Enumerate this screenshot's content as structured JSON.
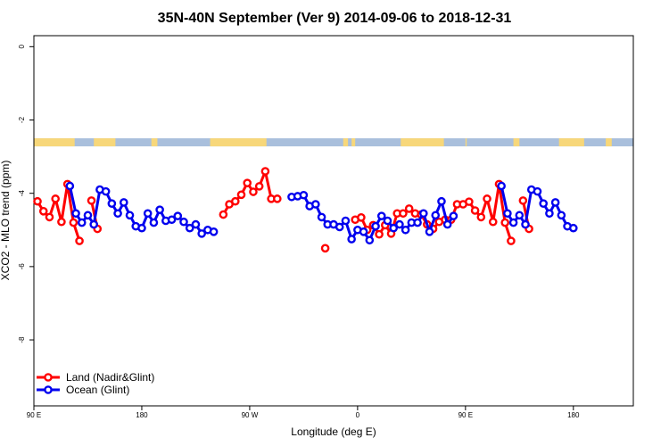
{
  "chart_data": {
    "type": "line",
    "title": "35N-40N September (Ver 9)   2014-09-06 to 2018-12-31",
    "xlabel": "Longitude (deg E)",
    "ylabel": "XCO2 - MLO trend (ppm)",
    "xlim": [
      90,
      590
    ],
    "ylim": [
      -9.8,
      0.3
    ],
    "x_ticks": [
      {
        "value": 90,
        "label": "90 E"
      },
      {
        "value": 180,
        "label": "180"
      },
      {
        "value": 270,
        "label": "90 W"
      },
      {
        "value": 360,
        "label": "0"
      },
      {
        "value": 450,
        "label": "90 E"
      },
      {
        "value": 540,
        "label": "180"
      }
    ],
    "y_ticks": [
      {
        "value": 0,
        "label": "0"
      },
      {
        "value": -2,
        "label": "-2"
      },
      {
        "value": -4,
        "label": "-4"
      },
      {
        "value": -6,
        "label": "-6"
      },
      {
        "value": -8,
        "label": "-8"
      }
    ],
    "grid": false,
    "legend_position": "bottom-left",
    "land_ocean_strip": {
      "y_range": [
        -2.5,
        -2.72
      ],
      "land_color": "#f7d77a",
      "ocean_color": "#a9bfdc",
      "land_segments": [
        [
          90,
          124
        ],
        [
          140,
          158
        ],
        [
          188,
          193
        ],
        [
          237,
          284
        ],
        [
          348,
          352
        ],
        [
          355,
          358
        ],
        [
          396,
          432
        ],
        [
          450,
          451
        ],
        [
          490,
          495
        ],
        [
          528,
          549
        ],
        [
          567,
          572
        ]
      ]
    },
    "series": [
      {
        "name": "Land (Nadir&Glint)",
        "color": "#ff0000",
        "segments": [
          [
            [
              93,
              -4.22
            ],
            [
              98,
              -4.49
            ],
            [
              103,
              -4.65
            ],
            [
              108,
              -4.15
            ],
            [
              113,
              -4.78
            ],
            [
              118,
              -3.75
            ],
            [
              123,
              -4.8
            ],
            [
              128,
              -5.3
            ]
          ],
          [
            [
              138,
              -4.2
            ],
            [
              143,
              -4.97
            ]
          ],
          [
            [
              248,
              -4.58
            ],
            [
              253,
              -4.3
            ],
            [
              258,
              -4.22
            ],
            [
              263,
              -4.04
            ],
            [
              268,
              -3.72
            ],
            [
              273,
              -3.96
            ],
            [
              278,
              -3.81
            ],
            [
              283,
              -3.4
            ],
            [
              288,
              -4.15
            ],
            [
              293,
              -4.15
            ]
          ],
          [
            [
              333,
              -5.5
            ]
          ],
          [
            [
              358,
              -4.72
            ],
            [
              363,
              -4.66
            ],
            [
              368,
              -5.0
            ],
            [
              373,
              -4.87
            ],
            [
              378,
              -5.12
            ],
            [
              383,
              -4.87
            ],
            [
              388,
              -5.1
            ],
            [
              393,
              -4.55
            ],
            [
              398,
              -4.55
            ],
            [
              403,
              -4.42
            ],
            [
              408,
              -4.55
            ],
            [
              413,
              -4.58
            ],
            [
              418,
              -4.85
            ],
            [
              423,
              -4.97
            ],
            [
              428,
              -4.78
            ],
            [
              433,
              -4.72
            ],
            [
              438,
              -4.72
            ],
            [
              443,
              -4.3
            ],
            [
              448,
              -4.3
            ],
            [
              453,
              -4.23
            ],
            [
              458,
              -4.47
            ],
            [
              463,
              -4.65
            ],
            [
              468,
              -4.15
            ],
            [
              473,
              -4.78
            ],
            [
              478,
              -3.75
            ],
            [
              483,
              -4.8
            ],
            [
              488,
              -5.3
            ]
          ],
          [
            [
              498,
              -4.2
            ],
            [
              503,
              -4.97
            ]
          ]
        ]
      },
      {
        "name": "Ocean (Glint)",
        "color": "#0000ee",
        "segments": [
          [
            [
              120,
              -3.8
            ],
            [
              125,
              -4.55
            ],
            [
              130,
              -4.8
            ],
            [
              135,
              -4.6
            ],
            [
              140,
              -4.85
            ],
            [
              145,
              -3.9
            ],
            [
              150,
              -3.95
            ],
            [
              155,
              -4.28
            ],
            [
              160,
              -4.55
            ],
            [
              165,
              -4.25
            ],
            [
              170,
              -4.6
            ],
            [
              175,
              -4.9
            ],
            [
              180,
              -4.95
            ],
            [
              185,
              -4.55
            ],
            [
              190,
              -4.8
            ],
            [
              195,
              -4.45
            ],
            [
              200,
              -4.75
            ],
            [
              205,
              -4.72
            ],
            [
              210,
              -4.62
            ],
            [
              215,
              -4.78
            ],
            [
              220,
              -4.95
            ],
            [
              225,
              -4.85
            ],
            [
              230,
              -5.1
            ],
            [
              235,
              -5.0
            ],
            [
              240,
              -5.05
            ]
          ],
          [
            [
              305,
              -4.1
            ],
            [
              310,
              -4.08
            ],
            [
              315,
              -4.05
            ],
            [
              320,
              -4.35
            ],
            [
              325,
              -4.3
            ],
            [
              330,
              -4.65
            ],
            [
              335,
              -4.85
            ],
            [
              340,
              -4.85
            ],
            [
              345,
              -4.92
            ],
            [
              350,
              -4.75
            ],
            [
              355,
              -5.25
            ],
            [
              360,
              -5.0
            ],
            [
              365,
              -5.05
            ],
            [
              370,
              -5.28
            ],
            [
              375,
              -4.9
            ],
            [
              380,
              -4.62
            ],
            [
              385,
              -4.75
            ],
            [
              390,
              -4.95
            ],
            [
              395,
              -4.85
            ],
            [
              400,
              -5.0
            ],
            [
              405,
              -4.8
            ],
            [
              410,
              -4.8
            ],
            [
              415,
              -4.55
            ],
            [
              420,
              -5.05
            ],
            [
              425,
              -4.6
            ],
            [
              430,
              -4.22
            ],
            [
              435,
              -4.85
            ],
            [
              440,
              -4.62
            ]
          ],
          [
            [
              480,
              -3.8
            ],
            [
              485,
              -4.55
            ],
            [
              490,
              -4.8
            ],
            [
              495,
              -4.6
            ],
            [
              500,
              -4.85
            ],
            [
              505,
              -3.9
            ],
            [
              510,
              -3.95
            ],
            [
              515,
              -4.28
            ],
            [
              520,
              -4.55
            ],
            [
              525,
              -4.25
            ],
            [
              530,
              -4.6
            ],
            [
              535,
              -4.9
            ],
            [
              540,
              -4.95
            ]
          ]
        ]
      }
    ]
  }
}
